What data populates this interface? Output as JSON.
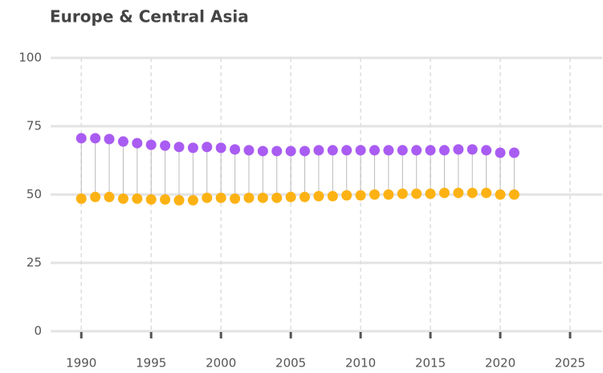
{
  "chart_data": {
    "type": "dumbbell",
    "title": "Europe & Central Asia",
    "x": [
      1990,
      1991,
      1992,
      1993,
      1994,
      1995,
      1996,
      1997,
      1998,
      1999,
      2000,
      2001,
      2002,
      2003,
      2004,
      2005,
      2006,
      2007,
      2008,
      2009,
      2010,
      2011,
      2012,
      2013,
      2014,
      2015,
      2016,
      2017,
      2018,
      2019,
      2020,
      2021
    ],
    "series": [
      {
        "color": "#a95cf2",
        "values": [
          70.6,
          70.6,
          70.3,
          69.4,
          68.8,
          68.2,
          67.9,
          67.4,
          67.1,
          67.4,
          67.1,
          66.5,
          66.2,
          65.9,
          65.9,
          65.9,
          65.9,
          66.2,
          66.2,
          66.2,
          66.2,
          66.2,
          66.2,
          66.2,
          66.2,
          66.2,
          66.2,
          66.5,
          66.5,
          66.2,
          65.3,
          65.3
        ]
      },
      {
        "color": "#fdb214",
        "values": [
          48.5,
          49.1,
          49.1,
          48.5,
          48.5,
          48.2,
          48.2,
          47.9,
          47.9,
          48.8,
          48.8,
          48.5,
          48.8,
          48.8,
          48.8,
          49.1,
          49.1,
          49.4,
          49.4,
          49.7,
          49.7,
          50,
          50,
          50.3,
          50.3,
          50.3,
          50.6,
          50.6,
          50.6,
          50.6,
          50,
          50
        ]
      }
    ],
    "xlim": [
      1987.8,
      2027.3
    ],
    "xticks": [
      1990,
      1995,
      2000,
      2005,
      2010,
      2015,
      2020,
      2025
    ],
    "ylim": [
      0,
      100
    ],
    "yticks": [
      0,
      25,
      50,
      75,
      100
    ],
    "grid": true
  }
}
